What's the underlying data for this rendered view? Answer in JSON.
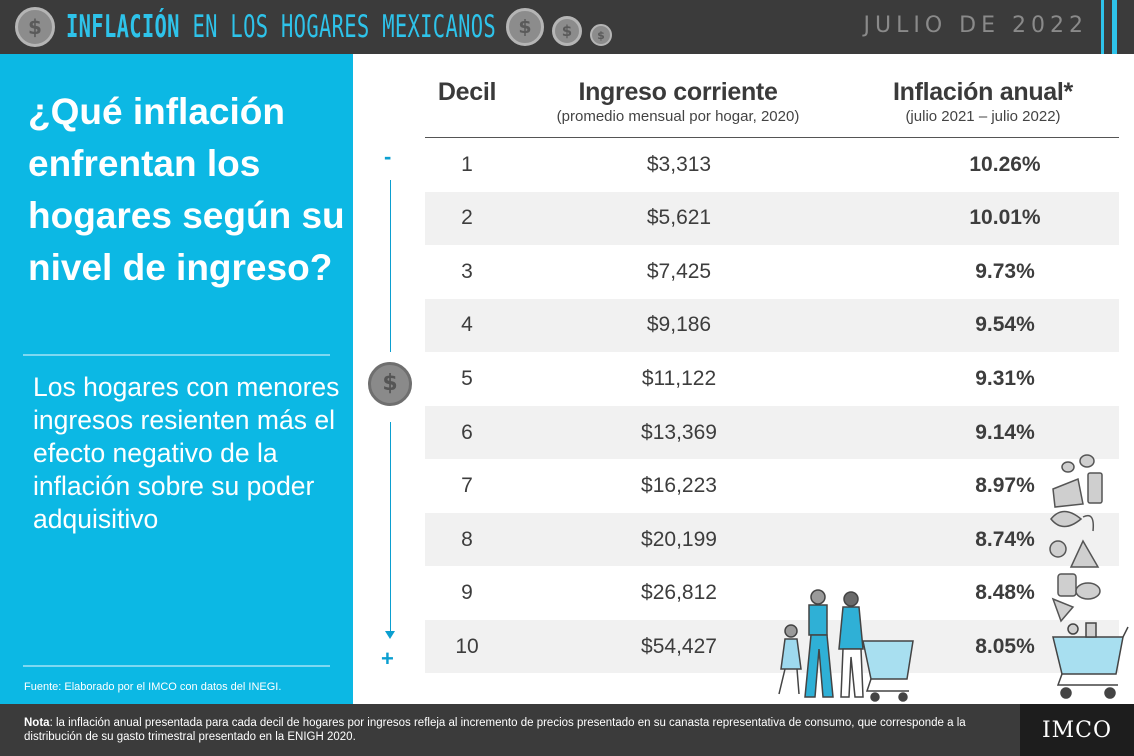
{
  "header": {
    "title_bold": "INFLACIÓN",
    "title_rest": " EN LOS HOGARES MEXICANOS",
    "date": "JULIO DE 2022",
    "accent_color": "#2ec3ea"
  },
  "left_panel": {
    "question": "¿Qué inflación enfrentan los hogares según su nivel de ingreso?",
    "description": "Los hogares con menores ingresos resienten más el efecto negativo de la inflación sobre su poder adquisitivo",
    "source": "Fuente: Elaborado por el IMCO  con datos del INEGI.",
    "background_color": "#0cb8e4"
  },
  "table": {
    "columns": [
      {
        "title": "Decil",
        "subtitle": ""
      },
      {
        "title": "Ingreso corriente",
        "subtitle": "(promedio mensual por hogar, 2020)"
      },
      {
        "title": "Inflación anual*",
        "subtitle": "(julio 2021 – julio 2022)"
      }
    ],
    "axis_minus": "-",
    "axis_plus": "+",
    "rows": [
      {
        "decil": "1",
        "ingreso": "$3,313",
        "inflacion": "10.26%"
      },
      {
        "decil": "2",
        "ingreso": "$5,621",
        "inflacion": "10.01%"
      },
      {
        "decil": "3",
        "ingreso": "$7,425",
        "inflacion": "9.73%"
      },
      {
        "decil": "4",
        "ingreso": "$9,186",
        "inflacion": "9.54%"
      },
      {
        "decil": "5",
        "ingreso": "$11,122",
        "inflacion": "9.31%"
      },
      {
        "decil": "6",
        "ingreso": "$13,369",
        "inflacion": "9.14%"
      },
      {
        "decil": "7",
        "ingreso": "$16,223",
        "inflacion": "8.97%"
      },
      {
        "decil": "8",
        "ingreso": "$20,199",
        "inflacion": "8.74%"
      },
      {
        "decil": "9",
        "ingreso": "$26,812",
        "inflacion": "8.48%"
      },
      {
        "decil": "10",
        "ingreso": "$54,427",
        "inflacion": "8.05%"
      }
    ]
  },
  "footer": {
    "note_label": "Nota",
    "note_text": ": la inflación anual presentada para cada decil de hogares por ingresos refleja al incremento de precios presentado en su canasta representativa de consumo, que corresponde a la distribución de su gasto trimestral presentado en la ENIGH 2020.",
    "logo": "IMCO"
  },
  "icons": {
    "coin": "dollar-coin-icon",
    "family": "family-shopping-illustration",
    "cart": "shopping-cart-illustration",
    "groceries": "groceries-illustration"
  }
}
